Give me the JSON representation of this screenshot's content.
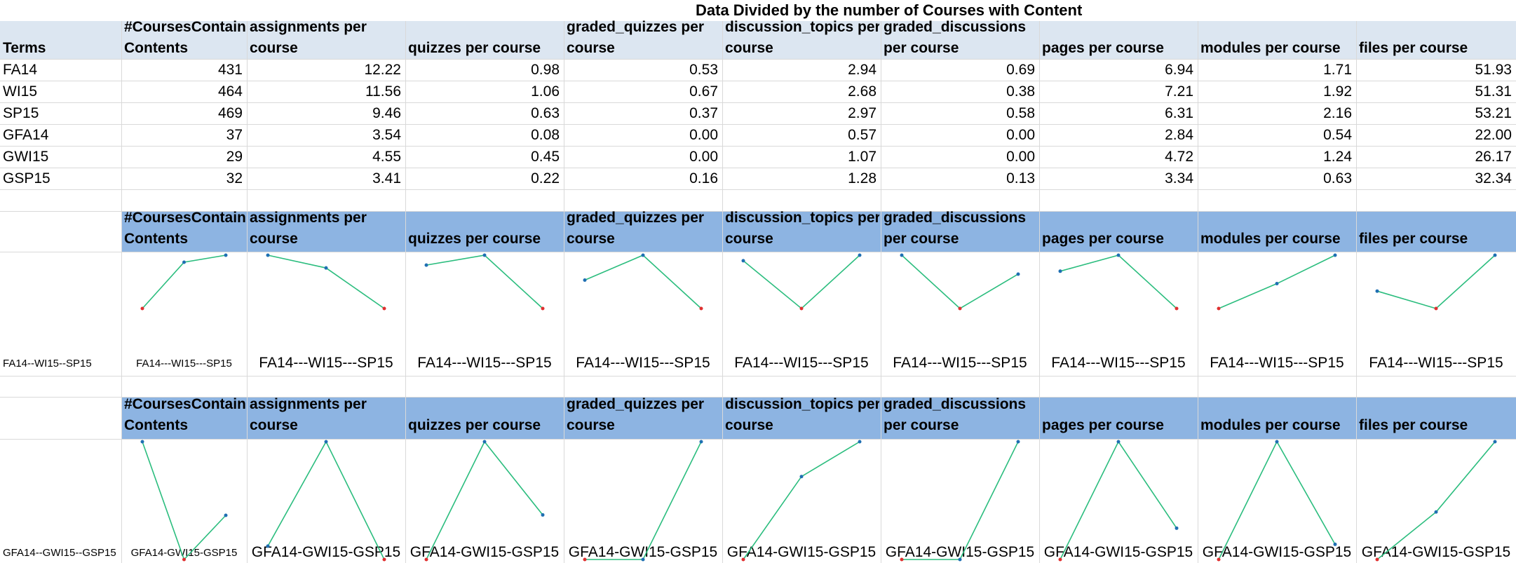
{
  "title": "Data Divided by the number of Courses with Content",
  "headers": [
    [
      "",
      "Terms"
    ],
    [
      "#CoursesContain",
      "Contents"
    ],
    [
      "assignments per",
      "course"
    ],
    [
      "",
      "quizzes per course"
    ],
    [
      "graded_quizzes per",
      "course"
    ],
    [
      "discussion_topics per",
      "course"
    ],
    [
      "graded_discussions",
      "per course"
    ],
    [
      "",
      "pages per course"
    ],
    [
      "",
      "modules per course"
    ],
    [
      "",
      "files per course"
    ]
  ],
  "rows": [
    {
      "term": "FA14",
      "values": [
        "431",
        "12.22",
        "0.98",
        "0.53",
        "2.94",
        "0.69",
        "6.94",
        "1.71",
        "51.93"
      ]
    },
    {
      "term": "WI15",
      "values": [
        "464",
        "11.56",
        "1.06",
        "0.67",
        "2.68",
        "0.38",
        "7.21",
        "1.92",
        "51.31"
      ]
    },
    {
      "term": "SP15",
      "values": [
        "469",
        "9.46",
        "0.63",
        "0.37",
        "2.97",
        "0.58",
        "6.31",
        "2.16",
        "53.21"
      ]
    },
    {
      "term": "GFA14",
      "values": [
        "37",
        "3.54",
        "0.08",
        "0.00",
        "0.57",
        "0.00",
        "2.84",
        "0.54",
        "22.00"
      ]
    },
    {
      "term": "GWI15",
      "values": [
        "29",
        "4.55",
        "0.45",
        "0.00",
        "1.07",
        "0.00",
        "4.72",
        "1.24",
        "26.17"
      ]
    },
    {
      "term": "GSP15",
      "values": [
        "32",
        "3.41",
        "0.22",
        "0.16",
        "1.28",
        "0.13",
        "3.34",
        "0.63",
        "32.34"
      ]
    }
  ],
  "sparkline_section_1": {
    "row_label": "FA14--WI15--SP15",
    "cell_labels": [
      "FA14---WI15---SP15",
      "FA14---WI15---SP15",
      "FA14---WI15---SP15",
      "FA14---WI15---SP15",
      "FA14---WI15---SP15",
      "FA14---WI15---SP15",
      "FA14---WI15---SP15",
      "FA14---WI15---SP15",
      "FA14---WI15---SP15"
    ]
  },
  "sparkline_section_2": {
    "row_label": "GFA14--GWI15--GSP15",
    "cell_labels": [
      "GFA14-GWI15-GSP15",
      "GFA14-GWI15-GSP15",
      "GFA14-GWI15-GSP15",
      "GFA14-GWI15-GSP15",
      "GFA14-GWI15-GSP15",
      "GFA14-GWI15-GSP15",
      "GFA14-GWI15-GSP15",
      "GFA14-GWI15-GSP15",
      "GFA14-GWI15-GSP15"
    ]
  },
  "colors": {
    "header_band": "#dce6f1",
    "sparkline_header_band": "#8db4e2",
    "sparkline_line": "#2bbd7e",
    "sparkline_low_point": "#e03030",
    "sparkline_point": "#1f6fb2"
  }
}
